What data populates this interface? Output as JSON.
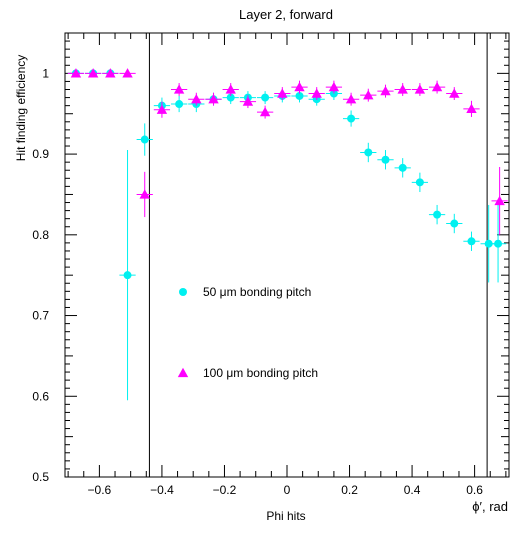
{
  "chart_data": {
    "type": "scatter",
    "title": "Layer 2, forward",
    "xlabel": "Phi hits",
    "xlabel_right": "ϕ′, rad",
    "ylabel": "Hit finding efficiency",
    "xlim": [
      -0.71,
      0.71
    ],
    "ylim": [
      0.5,
      1.05
    ],
    "x_ticks": [
      -0.6,
      -0.4,
      -0.2,
      0,
      0.2,
      0.4,
      0.6
    ],
    "x_tick_labels": [
      "−0.6",
      "−0.4",
      "−0.2",
      "0",
      "0.2",
      "0.4",
      "0.6"
    ],
    "y_ticks": [
      0.5,
      0.6,
      0.7,
      0.8,
      0.9,
      1.0
    ],
    "y_tick_labels": [
      "0.5",
      "0.6",
      "0.7",
      "0.8",
      "0.9",
      "1"
    ],
    "vertical_lines": [
      -0.44,
      0.64
    ],
    "grid": false,
    "x_error": 0.026,
    "series": [
      {
        "name": "50 μm bonding pitch",
        "marker": "circle",
        "color": "#00f0f0",
        "x": [
          -0.675,
          -0.62,
          -0.565,
          -0.51,
          -0.455,
          -0.4,
          -0.345,
          -0.29,
          -0.235,
          -0.18,
          -0.125,
          -0.07,
          -0.015,
          0.04,
          0.095,
          0.15,
          0.205,
          0.26,
          0.315,
          0.37,
          0.425,
          0.48,
          0.535,
          0.59,
          0.645,
          0.675
        ],
        "y": [
          1.0,
          1.0,
          1.0,
          0.75,
          0.918,
          0.96,
          0.962,
          0.962,
          0.968,
          0.97,
          0.97,
          0.97,
          0.972,
          0.972,
          0.968,
          0.975,
          0.944,
          0.902,
          0.893,
          0.883,
          0.865,
          0.825,
          0.814,
          0.792,
          0.789,
          0.789
        ],
        "yerr": [
          0.002,
          0.002,
          0.002,
          0.155,
          0.02,
          0.01,
          0.01,
          0.01,
          0.008,
          0.008,
          0.008,
          0.008,
          0.008,
          0.008,
          0.008,
          0.008,
          0.01,
          0.012,
          0.012,
          0.012,
          0.012,
          0.012,
          0.012,
          0.012,
          0.048,
          0.048
        ]
      },
      {
        "name": "100 μm bonding pitch",
        "marker": "triangle",
        "color": "#ff00ff",
        "x": [
          -0.675,
          -0.62,
          -0.565,
          -0.51,
          -0.455,
          -0.4,
          -0.345,
          -0.29,
          -0.235,
          -0.18,
          -0.125,
          -0.07,
          -0.015,
          0.04,
          0.095,
          0.15,
          0.205,
          0.26,
          0.315,
          0.37,
          0.425,
          0.48,
          0.535,
          0.59,
          0.68
        ],
        "y": [
          1.0,
          1.0,
          1.0,
          1.0,
          0.85,
          0.955,
          0.98,
          0.968,
          0.968,
          0.98,
          0.965,
          0.952,
          0.975,
          0.983,
          0.975,
          0.983,
          0.968,
          0.973,
          0.978,
          0.98,
          0.98,
          0.983,
          0.975,
          0.956,
          0.842
        ],
        "yerr": [
          0.002,
          0.002,
          0.002,
          0.002,
          0.028,
          0.01,
          0.008,
          0.008,
          0.008,
          0.008,
          0.008,
          0.008,
          0.008,
          0.008,
          0.008,
          0.008,
          0.008,
          0.008,
          0.008,
          0.008,
          0.008,
          0.008,
          0.008,
          0.01,
          0.042
        ]
      }
    ],
    "legend": [
      {
        "label": "50 μm bonding pitch",
        "marker": "circle",
        "color": "#00f0f0"
      },
      {
        "label": "100 μm bonding pitch",
        "marker": "triangle",
        "color": "#ff00ff"
      }
    ],
    "legend_placement": "center-left"
  }
}
